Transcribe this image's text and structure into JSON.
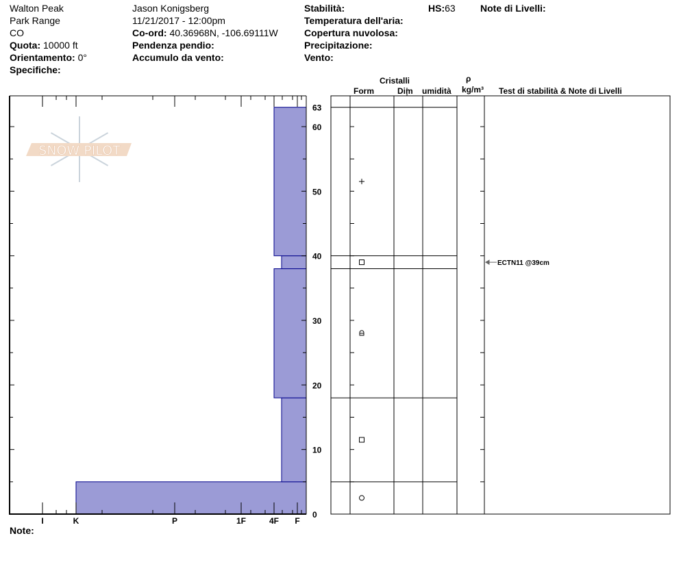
{
  "header": {
    "col1": {
      "location": "Walton Peak",
      "range": "Park Range",
      "state": "CO",
      "elevation_label": "Quota:",
      "elevation_value": "10000 ft",
      "aspect_label": "Orientamento:",
      "aspect_value": "0°",
      "specifics_label": "Specifiche:"
    },
    "col2": {
      "observer": "Jason Konigsberg",
      "datetime": "11/21/2017 - 12:00pm",
      "coord_label": "Co-ord:",
      "coord_value": "40.36968N, -106.69111W",
      "slope_label": "Pendenza pendio:",
      "wind_loading_label": "Accumulo da vento:"
    },
    "col3": {
      "stability_label": "Stabilità:",
      "air_temp_label": "Temperatura dell'aria:",
      "sky_label": "Copertura nuvolosa:",
      "precip_label": "Precipitazione:",
      "wind_label": "Vento:"
    },
    "hs_label": "HS:",
    "hs_value": "63",
    "layer_notes_label": "Note di Livelli:"
  },
  "table_headers": {
    "crystals": "Cristalli",
    "form": "Form",
    "size": "Dim",
    "moisture": "umidità",
    "rho": "ρ",
    "density_unit": "kg/m³",
    "tests": "Test di stabilità & Note di Livelli"
  },
  "notes_label": "Note:",
  "logo_text": "SNOW PILOT",
  "colors": {
    "layer_fill": "#9b9bd6",
    "layer_stroke": "#00008b"
  },
  "chart_data": {
    "type": "snow-profile",
    "depth_unit": "cm",
    "depth_range": [
      0,
      63
    ],
    "depth_ticks": [
      0,
      10,
      20,
      30,
      40,
      50,
      60,
      63
    ],
    "hardness_ticks": [
      "I",
      "K",
      "P",
      "1F",
      "4F",
      "F"
    ],
    "layers": [
      {
        "bottom": 0,
        "top": 5,
        "hardness": "K",
        "form": "circle"
      },
      {
        "bottom": 5,
        "top": 18,
        "hardness": "4F-",
        "form": "square"
      },
      {
        "bottom": 18,
        "top": 38,
        "hardness": "4F",
        "form": "rounded-faceted"
      },
      {
        "bottom": 38,
        "top": 40,
        "hardness": "4F-",
        "form": "square"
      },
      {
        "bottom": 40,
        "top": 63,
        "hardness": "4F",
        "form": "plus"
      }
    ],
    "tests": [
      {
        "depth": 39,
        "text": "ECTN11 @39cm"
      }
    ]
  }
}
